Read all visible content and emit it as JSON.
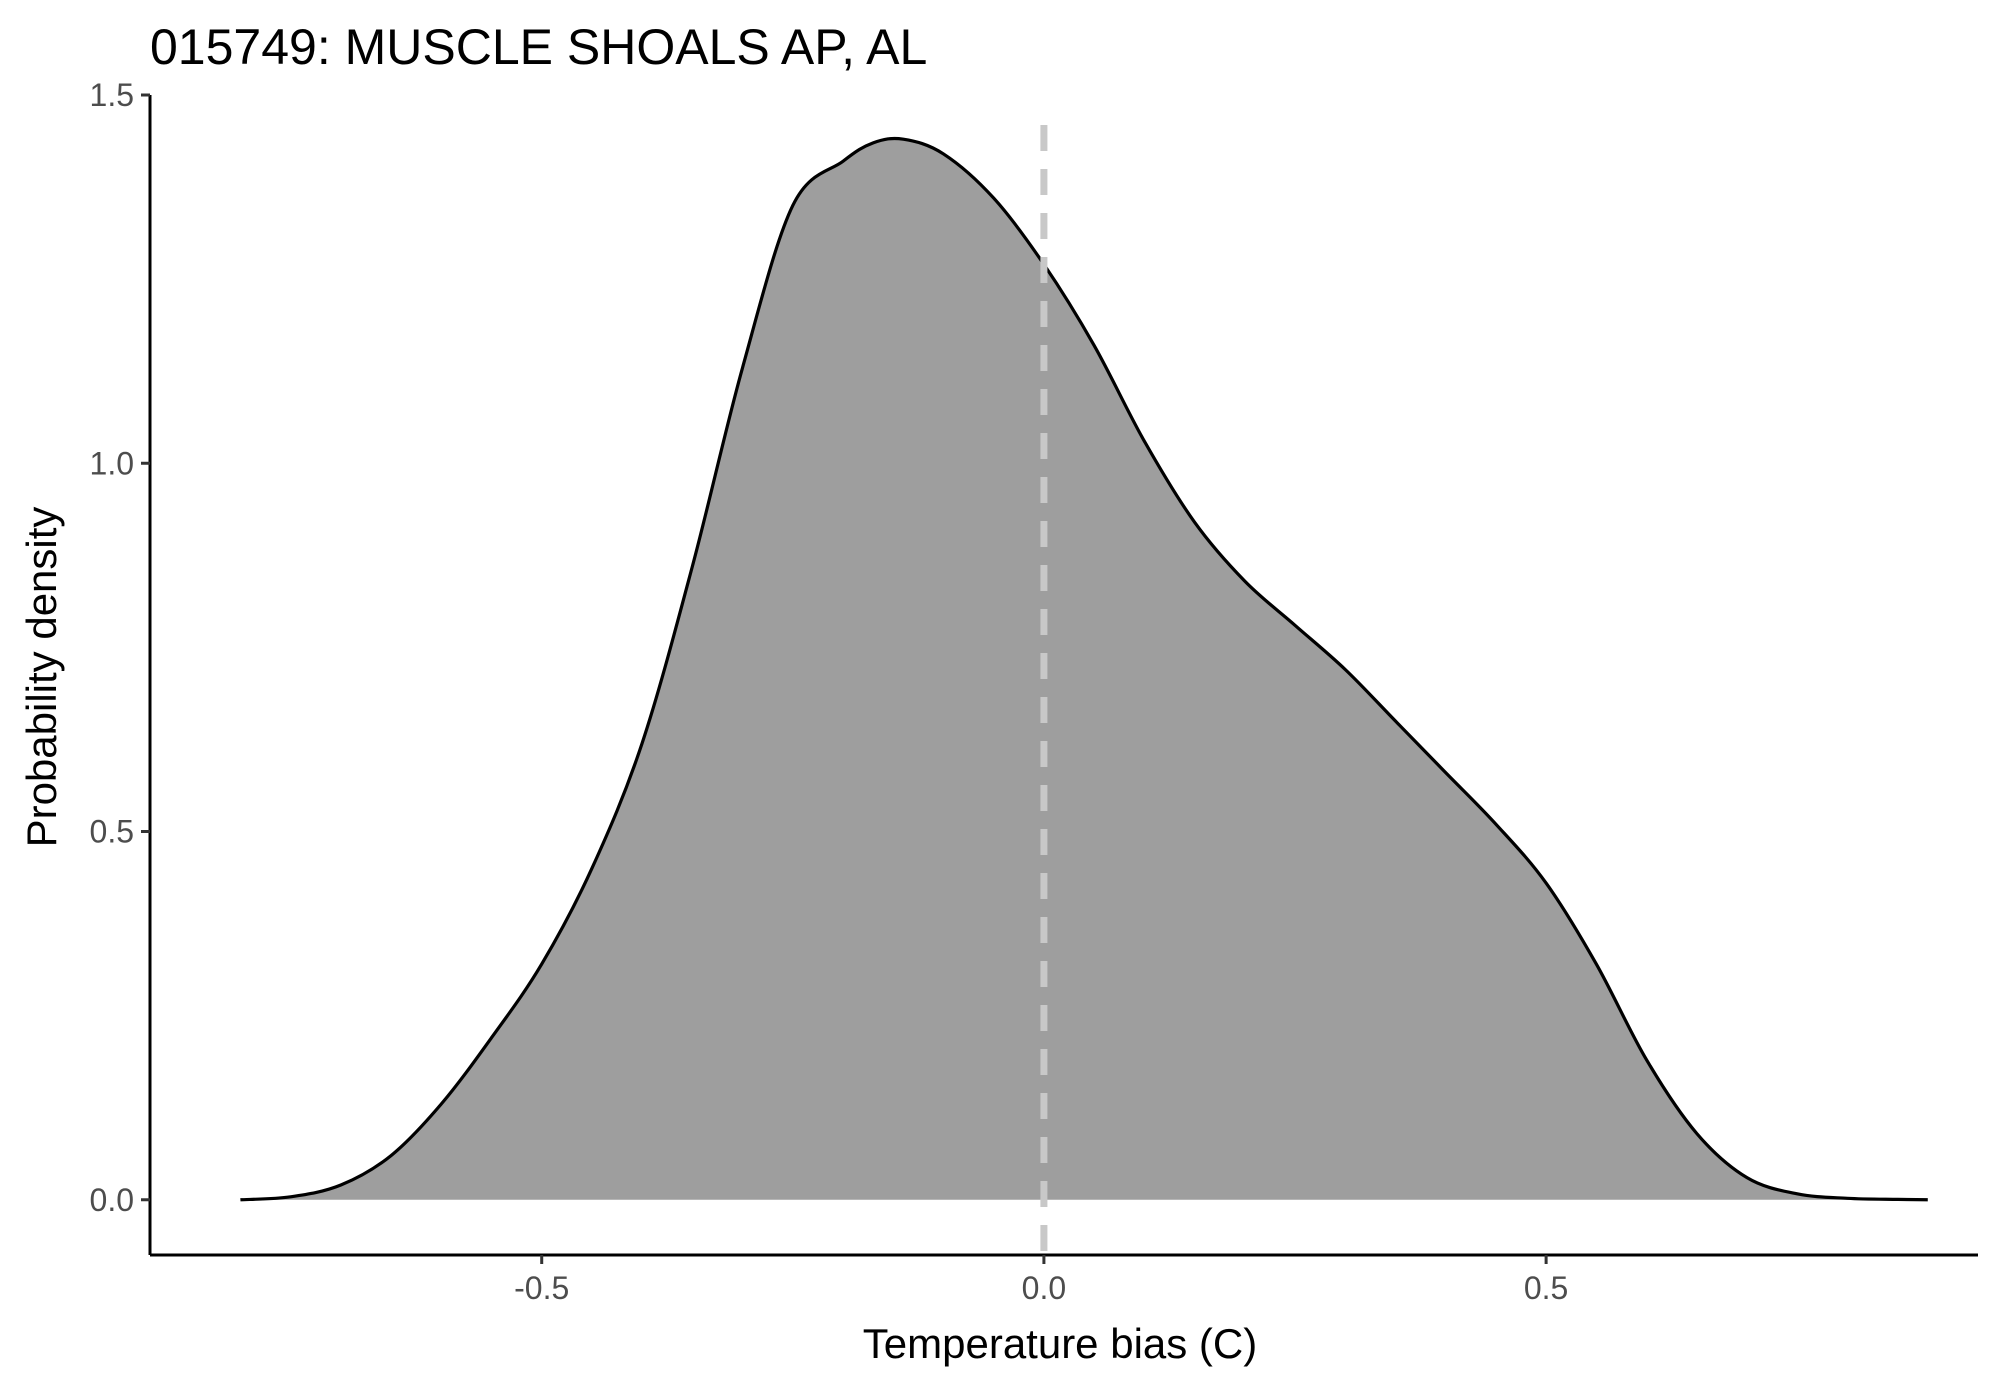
{
  "chart_data": {
    "type": "area",
    "title": "015749: MUSCLE SHOALS AP, AL",
    "xlabel": "Temperature bias (C)",
    "ylabel": "Probability density",
    "xlim": [
      -0.89,
      0.93
    ],
    "ylim": [
      -0.075,
      1.5
    ],
    "x_ticks": [
      -0.5,
      0.0,
      0.5
    ],
    "x_tick_labels": [
      "-0.5",
      "0.0",
      "0.5"
    ],
    "y_ticks": [
      0.0,
      0.5,
      1.0,
      1.5
    ],
    "y_tick_labels": [
      "0.0",
      "0.5",
      "1.0",
      "1.5"
    ],
    "grid": false,
    "reference_line": {
      "x": 0.0,
      "style": "dashed",
      "color": "#c8c8c8"
    },
    "fill_color": "#9e9e9e",
    "line_color": "#000000",
    "series": [
      {
        "x": [
          -0.8,
          -0.75,
          -0.7,
          -0.65,
          -0.6,
          -0.55,
          -0.5,
          -0.45,
          -0.4,
          -0.35,
          -0.3,
          -0.25,
          -0.2,
          -0.17,
          -0.14,
          -0.1,
          -0.05,
          0.0,
          0.05,
          0.1,
          0.15,
          0.2,
          0.25,
          0.3,
          0.35,
          0.4,
          0.45,
          0.5,
          0.55,
          0.6,
          0.65,
          0.7,
          0.75,
          0.8,
          0.85,
          0.88
        ],
        "y": [
          0.0,
          0.004,
          0.02,
          0.06,
          0.13,
          0.22,
          0.32,
          0.45,
          0.62,
          0.86,
          1.13,
          1.35,
          1.41,
          1.435,
          1.44,
          1.42,
          1.36,
          1.27,
          1.16,
          1.03,
          0.92,
          0.84,
          0.78,
          0.72,
          0.65,
          0.58,
          0.51,
          0.43,
          0.32,
          0.19,
          0.09,
          0.03,
          0.008,
          0.002,
          0.0005,
          0.0
        ]
      }
    ]
  }
}
